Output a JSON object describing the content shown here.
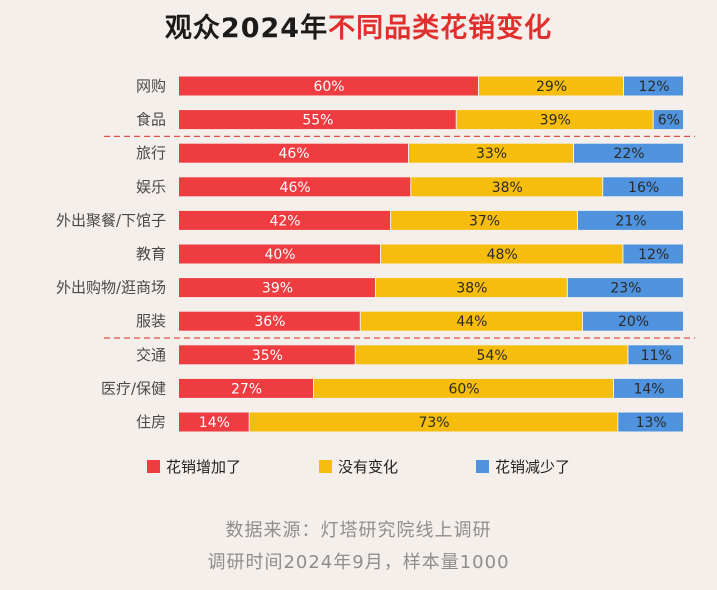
{
  "title": {
    "prefix": "观众2024年",
    "highlight": "不同品类花销变化"
  },
  "legend": [
    {
      "label": "花销增加了",
      "color": "#ee3c41"
    },
    {
      "label": "没有变化",
      "color": "#f6bd0c"
    },
    {
      "label": "花销减少了",
      "color": "#4f93df"
    }
  ],
  "source": {
    "line1": "数据来源：灯塔研究院线上调研",
    "line2": "调研时间2024年9月，样本量1000"
  },
  "chart_data": {
    "type": "bar",
    "orientation": "horizontal",
    "stacked": true,
    "percent_stacked": true,
    "categories": [
      "网购",
      "食品",
      "旅行",
      "娱乐",
      "外出聚餐/下馆子",
      "教育",
      "外出购物/逛商场",
      "服装",
      "交通",
      "医疗/保健",
      "住房"
    ],
    "series": [
      {
        "name": "花销增加了",
        "color": "#ee3c41",
        "values": [
          60,
          55,
          46,
          46,
          42,
          40,
          39,
          36,
          35,
          27,
          14
        ]
      },
      {
        "name": "没有变化",
        "color": "#f6bd0c",
        "values": [
          29,
          39,
          33,
          38,
          37,
          48,
          38,
          44,
          54,
          60,
          73
        ]
      },
      {
        "name": "花销减少了",
        "color": "#4f93df",
        "values": [
          12,
          6,
          22,
          16,
          21,
          12,
          23,
          20,
          11,
          14,
          13
        ]
      }
    ],
    "value_labels": [
      [
        "60%",
        "55%",
        "46%",
        "46%",
        "42%",
        "40%",
        "39%",
        "36%",
        "35%",
        "27%",
        "14%"
      ],
      [
        "29%",
        "39%",
        "33%",
        "38%",
        "37%",
        "48%",
        "38%",
        "44%",
        "54%",
        "60%",
        "73%"
      ],
      [
        "12%",
        "6%",
        "22%",
        "16%",
        "21%",
        "12%",
        "23%",
        "20%",
        "11%",
        "14%",
        "13%"
      ]
    ],
    "group_separators_after": [
      "食品",
      "服装"
    ]
  }
}
